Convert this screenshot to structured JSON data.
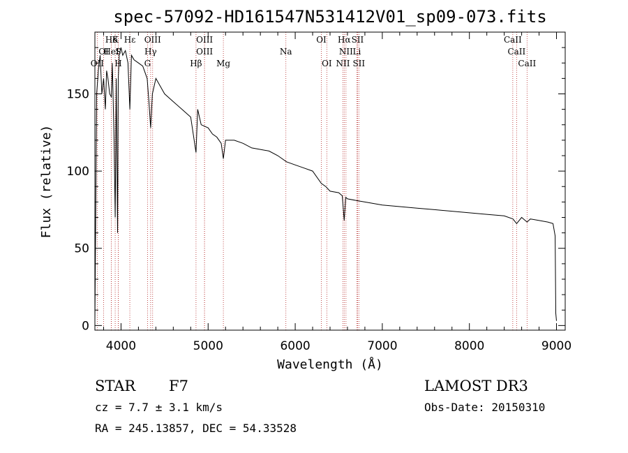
{
  "chart_data": {
    "type": "line",
    "title": "spec-57092-HD161547N531412V01_sp09-073.fits",
    "xlabel": "Wavelength (Å)",
    "ylabel": "Flux (relative)",
    "xlim": [
      3700,
      9100
    ],
    "ylim": [
      -3,
      190
    ],
    "xticks": [
      4000,
      5000,
      6000,
      7000,
      8000,
      9000
    ],
    "yticks": [
      0,
      50,
      100,
      150
    ],
    "series": [
      {
        "name": "flux",
        "x": [
          3700,
          3720,
          3740,
          3760,
          3780,
          3800,
          3820,
          3835,
          3850,
          3870,
          3889,
          3900,
          3920,
          3933,
          3945,
          3960,
          3968,
          3980,
          4000,
          4020,
          4050,
          4080,
          4101,
          4120,
          4150,
          4200,
          4250,
          4300,
          4320,
          4340,
          4360,
          4400,
          4450,
          4500,
          4600,
          4700,
          4800,
          4861,
          4880,
          4920,
          5000,
          5050,
          5100,
          5150,
          5175,
          5200,
          5300,
          5400,
          5500,
          5600,
          5700,
          5800,
          5900,
          6000,
          6100,
          6200,
          6300,
          6350,
          6400,
          6500,
          6540,
          6563,
          6580,
          6600,
          6700,
          6800,
          7000,
          7200,
          7400,
          7600,
          7800,
          8000,
          8200,
          8400,
          8500,
          8542,
          8600,
          8662,
          8700,
          8800,
          8900,
          8960,
          8985,
          8992,
          9000
        ],
        "y": [
          3,
          150,
          165,
          175,
          150,
          160,
          140,
          165,
          160,
          150,
          148,
          170,
          120,
          70,
          160,
          60,
          160,
          175,
          180,
          175,
          178,
          170,
          140,
          175,
          172,
          170,
          168,
          160,
          145,
          128,
          150,
          160,
          155,
          150,
          145,
          140,
          135,
          112,
          140,
          130,
          128,
          124,
          122,
          118,
          108,
          120,
          120,
          118,
          115,
          114,
          113,
          110,
          106,
          104,
          102,
          100,
          92,
          90,
          87,
          86,
          84,
          68,
          83,
          82,
          81,
          80,
          78,
          77,
          76,
          75,
          74,
          73,
          72,
          71,
          69,
          66,
          70,
          67,
          69,
          68,
          67,
          66,
          58,
          8,
          3
        ]
      }
    ],
    "lines": [
      {
        "label": "Hδ",
        "x": 3889,
        "row": 0
      },
      {
        "label": "K",
        "x": 3933,
        "row": 0
      },
      {
        "label": "Hε",
        "x": 4101,
        "row": 0
      },
      {
        "label": "OIII",
        "x": 4363,
        "row": 0
      },
      {
        "label": "OIII",
        "x": 4959,
        "row": 0
      },
      {
        "label": "OI",
        "x": 6300,
        "row": 0
      },
      {
        "label": "Hα",
        "x": 6563,
        "row": 0
      },
      {
        "label": "SII",
        "x": 6716,
        "row": 0
      },
      {
        "label": "CaII",
        "x": 8498,
        "row": 0
      },
      {
        "label": "OI",
        "x": 3800,
        "row": 1
      },
      {
        "label": "HeI",
        "x": 3889,
        "row": 1
      },
      {
        "label": "S",
        "x": 3968,
        "row": 1
      },
      {
        "label": "Hγ",
        "x": 4340,
        "row": 1
      },
      {
        "label": "OIII",
        "x": 4959,
        "row": 1
      },
      {
        "label": "Na",
        "x": 5893,
        "row": 1
      },
      {
        "label": "NII",
        "x": 6583,
        "row": 1
      },
      {
        "label": "Li",
        "x": 6708,
        "row": 1
      },
      {
        "label": "CaII",
        "x": 8542,
        "row": 1
      },
      {
        "label": "OII",
        "x": 3727,
        "row": 2
      },
      {
        "label": "H",
        "x": 3968,
        "row": 2
      },
      {
        "label": "G",
        "x": 4304,
        "row": 2
      },
      {
        "label": "Hβ",
        "x": 4861,
        "row": 2
      },
      {
        "label": "Mg",
        "x": 5175,
        "row": 2
      },
      {
        "label": "OI",
        "x": 6363,
        "row": 2
      },
      {
        "label": "NII",
        "x": 6548,
        "row": 2
      },
      {
        "label": "SII",
        "x": 6731,
        "row": 2
      },
      {
        "label": "CaII",
        "x": 8662,
        "row": 2
      }
    ]
  },
  "info": {
    "object_class": "STAR",
    "subclass": "F7",
    "cz": "cz = 7.7 ± 3.1 km/s",
    "coords": "RA = 245.13857, DEC =  54.33528",
    "survey": "LAMOST DR3",
    "obs_date": "Obs-Date: 20150310"
  },
  "colors": {
    "line_markers": "#b22222",
    "spectrum": "#000000"
  }
}
